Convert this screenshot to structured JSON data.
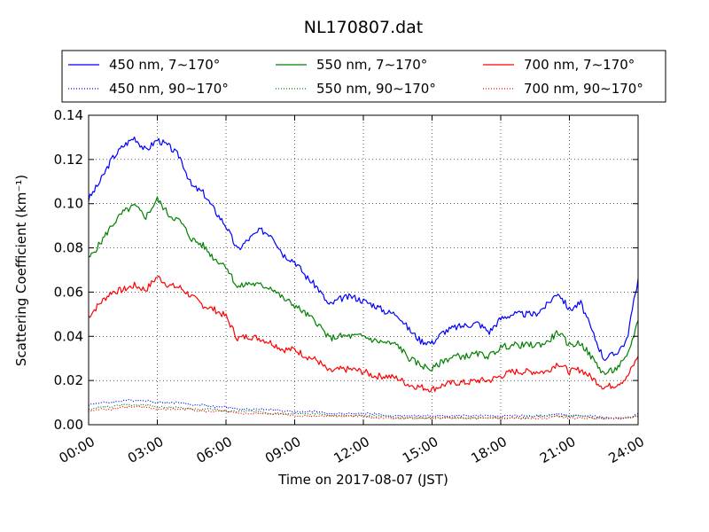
{
  "chart_data": {
    "type": "line",
    "title": "NL170807.dat",
    "xlabel": "Time on 2017-08-07 (JST)",
    "ylabel": "Scattering Coefficient (km⁻¹)",
    "x_unit": "hours",
    "xlim": [
      0,
      24
    ],
    "ylim": [
      0,
      0.14
    ],
    "x_ticks": [
      "00:00",
      "03:00",
      "06:00",
      "09:00",
      "12:00",
      "15:00",
      "18:00",
      "21:00",
      "24:00"
    ],
    "y_ticks": [
      "0.00",
      "0.02",
      "0.04",
      "0.06",
      "0.08",
      "0.10",
      "0.12",
      "0.14"
    ],
    "grid": true,
    "legend_position": "top",
    "x": [
      0,
      0.5,
      1,
      1.5,
      2,
      2.5,
      3,
      3.5,
      4,
      4.5,
      5,
      5.5,
      6,
      6.5,
      7,
      7.5,
      8,
      8.5,
      9,
      9.5,
      10,
      10.5,
      11,
      11.5,
      12,
      12.5,
      13,
      13.5,
      14,
      14.5,
      15,
      15.5,
      16,
      16.5,
      17,
      17.5,
      18,
      18.5,
      19,
      19.5,
      20,
      20.5,
      21,
      21.5,
      22,
      22.5,
      23,
      23.5,
      24
    ],
    "series": [
      {
        "name": "450 nm, 7∼170°",
        "color": "#0000ff",
        "style": "solid",
        "values": [
          0.102,
          0.11,
          0.12,
          0.126,
          0.13,
          0.124,
          0.129,
          0.126,
          0.121,
          0.108,
          0.105,
          0.097,
          0.09,
          0.079,
          0.084,
          0.088,
          0.086,
          0.077,
          0.074,
          0.067,
          0.062,
          0.054,
          0.057,
          0.058,
          0.056,
          0.054,
          0.051,
          0.05,
          0.043,
          0.038,
          0.037,
          0.042,
          0.044,
          0.045,
          0.046,
          0.042,
          0.048,
          0.05,
          0.05,
          0.05,
          0.054,
          0.06,
          0.052,
          0.055,
          0.042,
          0.03,
          0.032,
          0.038,
          0.066
        ]
      },
      {
        "name": "450 nm, 90∼170°",
        "color": "#0000ff",
        "style": "dotted",
        "values": [
          0.009,
          0.01,
          0.01,
          0.011,
          0.011,
          0.011,
          0.01,
          0.01,
          0.01,
          0.009,
          0.009,
          0.008,
          0.008,
          0.007,
          0.007,
          0.007,
          0.007,
          0.006,
          0.006,
          0.006,
          0.006,
          0.005,
          0.005,
          0.005,
          0.005,
          0.005,
          0.004,
          0.004,
          0.004,
          0.004,
          0.004,
          0.004,
          0.004,
          0.004,
          0.004,
          0.004,
          0.004,
          0.004,
          0.004,
          0.004,
          0.004,
          0.005,
          0.004,
          0.004,
          0.004,
          0.003,
          0.003,
          0.003,
          0.005
        ]
      },
      {
        "name": "550 nm, 7∼170°",
        "color": "#008000",
        "style": "solid",
        "values": [
          0.075,
          0.082,
          0.09,
          0.096,
          0.099,
          0.094,
          0.102,
          0.095,
          0.092,
          0.084,
          0.081,
          0.075,
          0.072,
          0.062,
          0.064,
          0.063,
          0.062,
          0.057,
          0.054,
          0.05,
          0.046,
          0.039,
          0.04,
          0.04,
          0.04,
          0.038,
          0.037,
          0.036,
          0.03,
          0.027,
          0.025,
          0.029,
          0.031,
          0.031,
          0.032,
          0.031,
          0.035,
          0.036,
          0.036,
          0.036,
          0.037,
          0.042,
          0.036,
          0.037,
          0.03,
          0.023,
          0.025,
          0.03,
          0.047
        ]
      },
      {
        "name": "550 nm, 90∼170°",
        "color": "#008000",
        "style": "dotted",
        "values": [
          0.007,
          0.008,
          0.008,
          0.009,
          0.009,
          0.009,
          0.008,
          0.008,
          0.008,
          0.007,
          0.007,
          0.007,
          0.006,
          0.006,
          0.006,
          0.006,
          0.005,
          0.005,
          0.005,
          0.005,
          0.005,
          0.004,
          0.004,
          0.004,
          0.004,
          0.004,
          0.004,
          0.003,
          0.003,
          0.003,
          0.003,
          0.003,
          0.003,
          0.003,
          0.003,
          0.003,
          0.003,
          0.003,
          0.003,
          0.004,
          0.004,
          0.004,
          0.004,
          0.004,
          0.003,
          0.003,
          0.003,
          0.003,
          0.004
        ]
      },
      {
        "name": "700 nm, 7∼170°",
        "color": "#ff0000",
        "style": "solid",
        "values": [
          0.049,
          0.055,
          0.06,
          0.061,
          0.063,
          0.061,
          0.067,
          0.063,
          0.062,
          0.058,
          0.054,
          0.052,
          0.049,
          0.039,
          0.04,
          0.039,
          0.037,
          0.034,
          0.034,
          0.031,
          0.029,
          0.024,
          0.025,
          0.025,
          0.024,
          0.022,
          0.022,
          0.021,
          0.018,
          0.017,
          0.016,
          0.018,
          0.019,
          0.019,
          0.02,
          0.02,
          0.022,
          0.024,
          0.024,
          0.024,
          0.024,
          0.028,
          0.024,
          0.025,
          0.021,
          0.017,
          0.018,
          0.021,
          0.031
        ]
      },
      {
        "name": "700 nm, 90∼170°",
        "color": "#ff0000",
        "style": "dotted",
        "values": [
          0.006,
          0.007,
          0.007,
          0.008,
          0.008,
          0.008,
          0.007,
          0.007,
          0.007,
          0.007,
          0.006,
          0.006,
          0.006,
          0.005,
          0.005,
          0.005,
          0.005,
          0.005,
          0.004,
          0.004,
          0.004,
          0.004,
          0.004,
          0.004,
          0.004,
          0.003,
          0.003,
          0.003,
          0.003,
          0.003,
          0.003,
          0.003,
          0.003,
          0.003,
          0.003,
          0.003,
          0.003,
          0.003,
          0.003,
          0.003,
          0.003,
          0.004,
          0.003,
          0.003,
          0.003,
          0.003,
          0.003,
          0.003,
          0.004
        ]
      }
    ]
  }
}
